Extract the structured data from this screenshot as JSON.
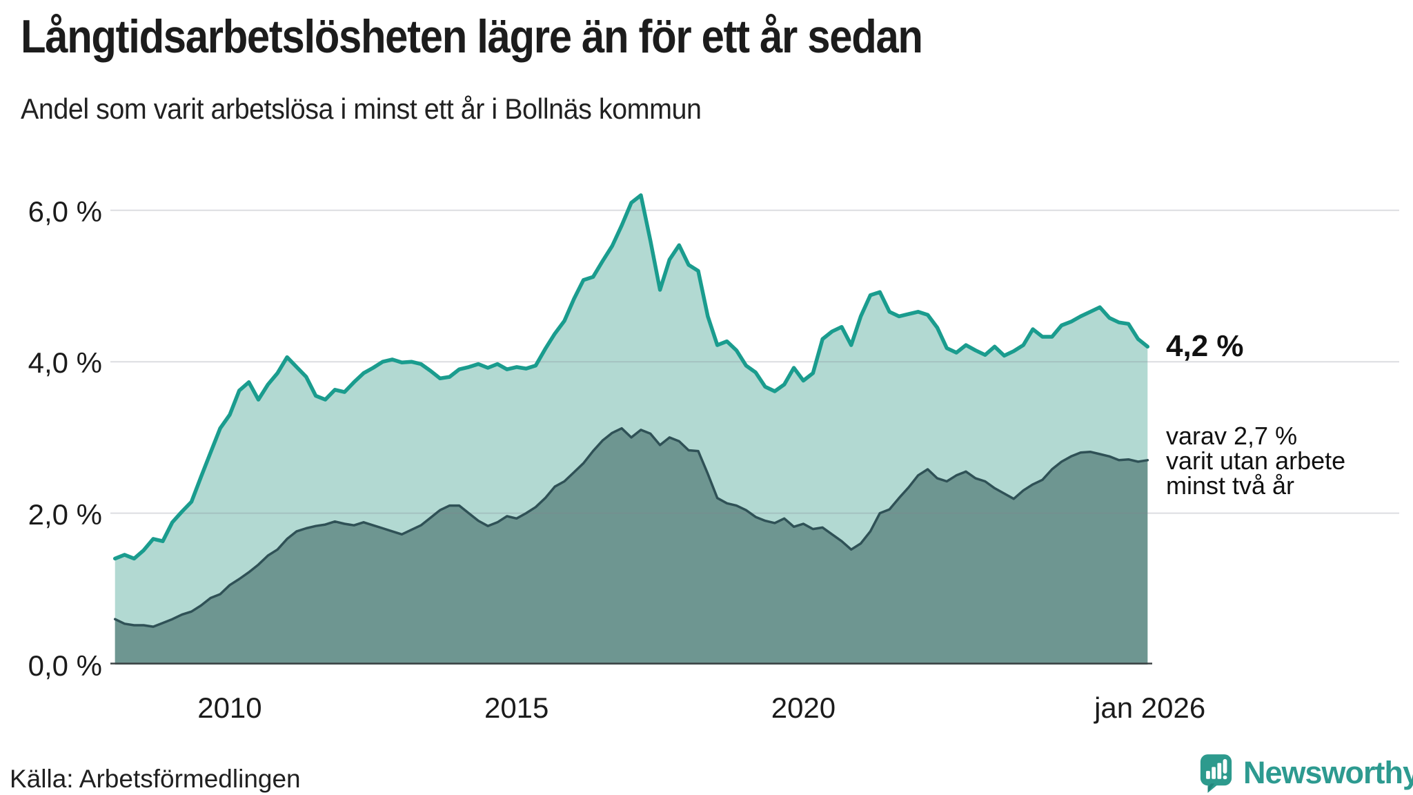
{
  "header": {
    "title": "Långtidsarbetslösheten lägre än för ett år sedan",
    "subtitle": "Andel som varit arbetslösa i minst ett år i Bollnäs kommun"
  },
  "chart_data": {
    "type": "area",
    "title": "Långtidsarbetslösheten lägre än för ett år sedan",
    "subtitle": "Andel som varit arbetslösa i minst ett år i Bollnäs kommun",
    "unit": "%",
    "x_start_year": 2008,
    "x_end_year": 2026,
    "points_per_year": 6,
    "x_domain": [
      2007.92,
      2026.08
    ],
    "ylim": [
      0,
      6.6
    ],
    "grid": "horizontal",
    "legend_position": "none",
    "x_tick_years": [
      2010,
      2015,
      2020,
      2026.04
    ],
    "x_tick_labels": [
      "2010",
      "2015",
      "2020",
      "jan 2026"
    ],
    "y_tick_values": [
      0,
      2,
      4,
      6
    ],
    "y_tick_labels": [
      "0,0 %",
      "2,0 %",
      "4,0 %",
      "6,0 %"
    ],
    "series": [
      {
        "name": "Andel som varit arbetslösa i minst ett år",
        "line_color": "#1a9c8e",
        "fill_color": "#b2d9d2",
        "line_width": 5.5,
        "end_value": 4.2,
        "end_label": "4,2 %",
        "values": [
          1.4,
          1.45,
          1.4,
          1.51,
          1.66,
          1.63,
          1.88,
          2.02,
          2.15,
          2.48,
          2.8,
          3.12,
          3.3,
          3.62,
          3.73,
          3.5,
          3.7,
          3.85,
          4.06,
          3.93,
          3.8,
          3.55,
          3.5,
          3.63,
          3.6,
          3.73,
          3.85,
          3.92,
          4.0,
          4.03,
          3.99,
          4.0,
          3.97,
          3.88,
          3.78,
          3.8,
          3.9,
          3.93,
          3.97,
          3.92,
          3.97,
          3.9,
          3.93,
          3.91,
          3.95,
          4.17,
          4.37,
          4.54,
          4.83,
          5.08,
          5.12,
          5.33,
          5.53,
          5.8,
          6.1,
          6.2,
          5.6,
          4.95,
          5.35,
          5.54,
          5.28,
          5.2,
          4.6,
          4.22,
          4.27,
          4.15,
          3.95,
          3.86,
          3.67,
          3.61,
          3.7,
          3.92,
          3.75,
          3.85,
          4.3,
          4.4,
          4.46,
          4.22,
          4.6,
          4.88,
          4.92,
          4.66,
          4.6,
          4.63,
          4.66,
          4.62,
          4.45,
          4.18,
          4.12,
          4.22,
          4.15,
          4.09,
          4.2,
          4.08,
          4.14,
          4.22,
          4.43,
          4.33,
          4.33,
          4.48,
          4.53,
          4.6,
          4.66,
          4.72,
          4.58,
          4.52,
          4.5,
          4.3,
          4.2
        ]
      },
      {
        "name": "varav utan arbete minst två år",
        "line_color": "#2f5156",
        "fill_color": "#6e9691",
        "line_width": 3.5,
        "end_value": 2.7,
        "end_label": "varav 2,7 % varit utan arbete minst två år",
        "values": [
          0.6,
          0.54,
          0.52,
          0.52,
          0.5,
          0.55,
          0.6,
          0.66,
          0.7,
          0.78,
          0.88,
          0.93,
          1.05,
          1.13,
          1.22,
          1.32,
          1.44,
          1.52,
          1.66,
          1.76,
          1.8,
          1.83,
          1.85,
          1.89,
          1.86,
          1.84,
          1.88,
          1.84,
          1.8,
          1.76,
          1.72,
          1.78,
          1.84,
          1.94,
          2.04,
          2.1,
          2.1,
          2.0,
          1.9,
          1.83,
          1.88,
          1.96,
          1.93,
          2.0,
          2.08,
          2.2,
          2.35,
          2.42,
          2.54,
          2.66,
          2.82,
          2.96,
          3.06,
          3.12,
          3.0,
          3.1,
          3.05,
          2.9,
          3.0,
          2.95,
          2.83,
          2.82,
          2.52,
          2.2,
          2.13,
          2.1,
          2.04,
          1.95,
          1.9,
          1.87,
          1.93,
          1.82,
          1.86,
          1.79,
          1.81,
          1.72,
          1.63,
          1.52,
          1.6,
          1.76,
          2.0,
          2.05,
          2.2,
          2.34,
          2.5,
          2.58,
          2.46,
          2.42,
          2.5,
          2.55,
          2.46,
          2.42,
          2.33,
          2.26,
          2.19,
          2.3,
          2.38,
          2.44,
          2.58,
          2.68,
          2.75,
          2.8,
          2.81,
          2.78,
          2.75,
          2.7,
          2.71,
          2.68,
          2.7
        ]
      }
    ],
    "annotations": {
      "end_value_primary": "4,2 %",
      "end_note_lines": [
        "varav 2,7 %",
        "varit utan arbete",
        "minst två år"
      ]
    }
  },
  "footer": {
    "source": "Källa: Arbetsförmedlingen",
    "logo_text": "Newsworthy"
  },
  "colors": {
    "accent_teal": "#1a9c8e",
    "fill_light": "#b2d9d2",
    "fill_dark": "#6e9691",
    "line_dark": "#2f5156",
    "gridline": "#dcdee3",
    "baseline": "#3d4345",
    "logo_teal": "#2d9a90"
  }
}
